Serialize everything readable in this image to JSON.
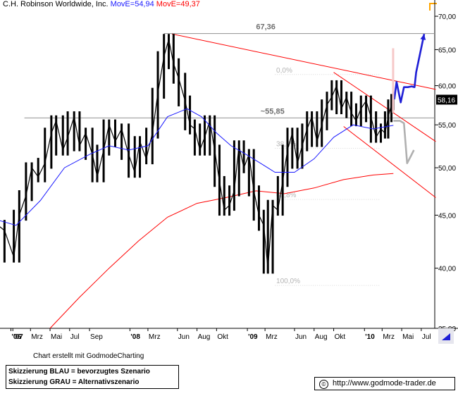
{
  "header": {
    "title": "C.H. Robinson Worldwide, Inc.",
    "ma1_label": "MovE=54,94",
    "ma2_label": "MovE=49,37"
  },
  "footer": {
    "credit": "Chart erstellt mit GodmodeCharting",
    "legend_blue": "Skizzierung BLAU = bevorzugtes Szenario",
    "legend_grey": "Skizzierung GRAU = Alternativszenario",
    "url": "http://www.godmode-trader.de",
    "copyright_symbol": "©"
  },
  "colors": {
    "price": "#000000",
    "ma_fast": "#1a1aff",
    "ma_slow": "#ff0000",
    "trend": "#ff0000",
    "scenario_blue": "#1f1fd6",
    "scenario_grey": "#b0b0b0",
    "level": "#909090",
    "fib_text": "#b4b4b4",
    "annot": "#6f6f6f"
  },
  "chart_data": {
    "type": "line",
    "title": "C.H. Robinson Worldwide, Inc.",
    "y_scale": "log",
    "ylim": [
      35,
      71
    ],
    "y_ticks": [
      35,
      40,
      45,
      50,
      55,
      60,
      65,
      70
    ],
    "y_tick_labels": [
      "35,00",
      "40,00",
      "45,00",
      "50,00",
      "55,00",
      "60,00",
      "65,00",
      "70,00"
    ],
    "x_ticks": [
      {
        "date": "2006-12-30",
        "label": "'06"
      },
      {
        "date": "2007-01-05",
        "label": "'07"
      },
      {
        "date": "2007-03-01",
        "label": "Mrz"
      },
      {
        "date": "2007-05-01",
        "label": "Mai"
      },
      {
        "date": "2007-07-01",
        "label": "Jul"
      },
      {
        "date": "2007-09-01",
        "label": "Sep"
      },
      {
        "date": "2008-01-05",
        "label": "'08"
      },
      {
        "date": "2008-03-01",
        "label": "Mrz"
      },
      {
        "date": "2008-06-01",
        "label": "Jun"
      },
      {
        "date": "2008-08-01",
        "label": "Aug"
      },
      {
        "date": "2008-10-01",
        "label": "Okt"
      },
      {
        "date": "2009-01-05",
        "label": "'09"
      },
      {
        "date": "2009-03-01",
        "label": "Mrz"
      },
      {
        "date": "2009-06-01",
        "label": "Jun"
      },
      {
        "date": "2009-08-01",
        "label": "Aug"
      },
      {
        "date": "2009-10-01",
        "label": "Okt"
      },
      {
        "date": "2010-01-05",
        "label": "'10"
      },
      {
        "date": "2010-03-01",
        "label": "Mrz"
      },
      {
        "date": "2010-05-01",
        "label": "Mai"
      },
      {
        "date": "2010-07-01",
        "label": "Jul"
      }
    ],
    "series": [
      {
        "name": "C.H. Robinson Worldwide, Inc.",
        "style": "price",
        "x": [
          "2006-11-20",
          "2006-12-10",
          "2007-01-08",
          "2007-01-25",
          "2007-02-15",
          "2007-03-05",
          "2007-03-25",
          "2007-04-15",
          "2007-05-05",
          "2007-05-20",
          "2007-06-10",
          "2007-06-25",
          "2007-07-15",
          "2007-08-01",
          "2007-08-20",
          "2007-09-10",
          "2007-09-25",
          "2007-10-15",
          "2007-11-01",
          "2007-11-20",
          "2007-12-10",
          "2008-01-01",
          "2008-01-20",
          "2008-02-05",
          "2008-02-25",
          "2008-03-15",
          "2008-04-01",
          "2008-04-20",
          "2008-05-05",
          "2008-05-20",
          "2008-06-05",
          "2008-06-25",
          "2008-07-10",
          "2008-07-25",
          "2008-08-10",
          "2008-08-25",
          "2008-09-10",
          "2008-09-25",
          "2008-10-10",
          "2008-10-25",
          "2008-11-10",
          "2008-11-25",
          "2008-12-10",
          "2008-12-25",
          "2009-01-10",
          "2009-01-25",
          "2009-02-10",
          "2009-02-25",
          "2009-03-10",
          "2009-03-25",
          "2009-04-10",
          "2009-04-25",
          "2009-05-10",
          "2009-05-25",
          "2009-06-10",
          "2009-06-25",
          "2009-07-10",
          "2009-07-25",
          "2009-08-10",
          "2009-08-25",
          "2009-09-10",
          "2009-09-25",
          "2009-10-10",
          "2009-10-25",
          "2009-11-10",
          "2009-11-25",
          "2009-12-10",
          "2009-12-25",
          "2010-01-10",
          "2010-01-25",
          "2010-02-10",
          "2010-02-25",
          "2010-03-10",
          "2010-03-20",
          "2010-03-30",
          "2010-04-05"
        ],
        "values": [
          44.0,
          43.5,
          41.0,
          45.0,
          47.0,
          50.0,
          49.0,
          50.5,
          54.0,
          55.5,
          52.0,
          53.5,
          56.0,
          52.5,
          54.0,
          51.5,
          49.0,
          52.0,
          55.0,
          53.0,
          54.5,
          51.5,
          49.5,
          53.0,
          51.0,
          54.0,
          59.0,
          64.0,
          66.5,
          63.0,
          61.0,
          58.0,
          55.0,
          54.5,
          52.0,
          53.5,
          55.5,
          52.0,
          48.5,
          45.5,
          46.0,
          47.5,
          52.5,
          50.0,
          51.5,
          47.5,
          45.0,
          44.0,
          40.0,
          46.0,
          45.5,
          48.5,
          52.0,
          54.0,
          50.5,
          52.5,
          54.5,
          56.0,
          53.0,
          55.0,
          57.5,
          58.5,
          60.0,
          57.0,
          58.5,
          56.5,
          55.5,
          57.0,
          58.0,
          56.0,
          53.5,
          54.5,
          54.0,
          56.0,
          57.5,
          58.2
        ]
      },
      {
        "name": "MovE=54,94",
        "style": "ma_fast",
        "x": [
          "2006-11-20",
          "2007-01-15",
          "2007-04-01",
          "2007-06-15",
          "2007-09-01",
          "2007-11-01",
          "2008-01-01",
          "2008-03-01",
          "2008-05-01",
          "2008-07-01",
          "2008-08-15",
          "2008-10-01",
          "2008-11-15",
          "2009-01-01",
          "2009-02-15",
          "2009-04-01",
          "2009-06-01",
          "2009-08-01",
          "2009-10-01",
          "2009-12-01",
          "2010-02-01",
          "2010-04-05"
        ],
        "values": [
          44.5,
          44.0,
          46.5,
          50.0,
          51.5,
          52.5,
          52.0,
          52.5,
          56.0,
          57.0,
          56.0,
          54.0,
          52.5,
          51.5,
          50.5,
          49.5,
          49.5,
          51.0,
          53.5,
          55.0,
          54.5,
          54.94
        ]
      },
      {
        "name": "MovE=49,37",
        "style": "ma_slow",
        "x": [
          "2007-05-01",
          "2007-08-01",
          "2007-11-01",
          "2008-02-01",
          "2008-05-01",
          "2008-08-01",
          "2008-11-01",
          "2009-02-01",
          "2009-05-01",
          "2009-08-01",
          "2009-11-01",
          "2010-02-01",
          "2010-04-05"
        ],
        "values": [
          35.0,
          37.5,
          40.0,
          42.5,
          44.8,
          46.2,
          46.8,
          47.5,
          47.2,
          47.8,
          48.7,
          49.2,
          49.37
        ]
      }
    ],
    "levels": [
      {
        "label": "67,36",
        "value": 67.36
      },
      {
        "label": "~55,85",
        "value": 55.85
      }
    ],
    "fibonacci": [
      {
        "label": "0,0%",
        "value": 61.5
      },
      {
        "label": "38,2%",
        "value": 52.2
      },
      {
        "label": "61,8%",
        "value": 46.6
      },
      {
        "label": "100,0%",
        "value": 38.5
      }
    ],
    "trendlines": [
      {
        "name": "downtrend-upper",
        "x": [
          "2008-05-15",
          "2010-08-15"
        ],
        "values": [
          67.3,
          59.5
        ]
      },
      {
        "name": "channel-upper",
        "x": [
          "2009-10-01",
          "2010-08-15"
        ],
        "values": [
          61.8,
          53.0
        ]
      },
      {
        "name": "channel-lower",
        "x": [
          "2009-11-01",
          "2010-08-15"
        ],
        "values": [
          54.8,
          46.8
        ]
      }
    ],
    "scenarios": [
      {
        "name": "Skizzierung BLAU",
        "style": "blue",
        "x": [
          "2010-04-08",
          "2010-04-15",
          "2010-04-28",
          "2010-05-08",
          "2010-05-20",
          "2010-06-01",
          "2010-06-10",
          "2010-06-15",
          "2010-07-10"
        ],
        "values": [
          58.2,
          60.5,
          57.8,
          59.8,
          59.8,
          59.9,
          59.8,
          61.8,
          67.3
        ]
      },
      {
        "name": "Skizzierung GRAU",
        "style": "grey",
        "x": [
          "2010-04-05",
          "2010-04-25",
          "2010-05-08",
          "2010-05-18",
          "2010-05-28",
          "2010-06-08"
        ],
        "values": [
          55.5,
          55.5,
          55.2,
          50.5,
          51.2,
          52.0
        ]
      }
    ],
    "last_price_label": "58,16",
    "last_price": 58.16,
    "grid": false
  }
}
